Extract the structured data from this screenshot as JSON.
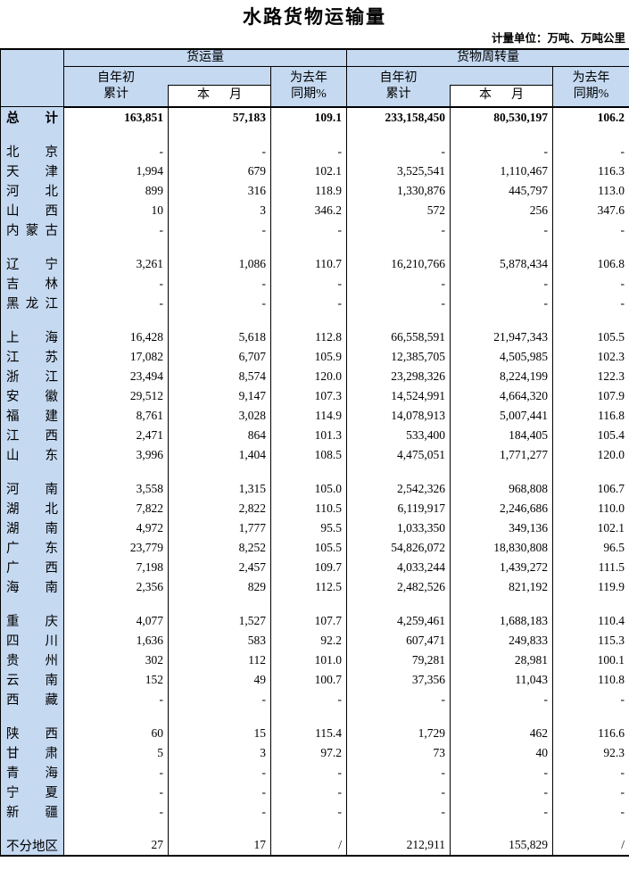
{
  "title": "水路货物运输量",
  "unit_note": "计量单位：万吨、万吨公里",
  "colors": {
    "header_bg": "#c5d9f1",
    "border": "#000000",
    "page_bg": "#ffffff"
  },
  "table": {
    "group_headers": [
      "货运量",
      "货物周转量"
    ],
    "sub_headers": {
      "cumulative_line1": "自年初",
      "cumulative_line2": "累计",
      "month": "本月",
      "yoy_line1": "为去年",
      "yoy_line2": "同期%"
    },
    "groups": [
      {
        "rows": [
          {
            "label": "总计",
            "bold": true,
            "values": [
              "163,851",
              "57,183",
              "109.1",
              "233,158,450",
              "80,530,197",
              "106.2"
            ]
          }
        ]
      },
      {
        "rows": [
          {
            "label": "北京",
            "values": [
              "-",
              "-",
              "-",
              "-",
              "-",
              "-"
            ]
          },
          {
            "label": "天津",
            "values": [
              "1,994",
              "679",
              "102.1",
              "3,525,541",
              "1,110,467",
              "116.3"
            ]
          },
          {
            "label": "河北",
            "values": [
              "899",
              "316",
              "118.9",
              "1,330,876",
              "445,797",
              "113.0"
            ]
          },
          {
            "label": "山西",
            "values": [
              "10",
              "3",
              "346.2",
              "572",
              "256",
              "347.6"
            ]
          },
          {
            "label": "内蒙古",
            "values": [
              "-",
              "-",
              "-",
              "-",
              "-",
              "-"
            ]
          }
        ]
      },
      {
        "rows": [
          {
            "label": "辽宁",
            "values": [
              "3,261",
              "1,086",
              "110.7",
              "16,210,766",
              "5,878,434",
              "106.8"
            ]
          },
          {
            "label": "吉林",
            "values": [
              "-",
              "-",
              "-",
              "-",
              "-",
              "-"
            ]
          },
          {
            "label": "黑龙江",
            "values": [
              "-",
              "-",
              "-",
              "-",
              "-",
              "-"
            ]
          }
        ]
      },
      {
        "rows": [
          {
            "label": "上海",
            "values": [
              "16,428",
              "5,618",
              "112.8",
              "66,558,591",
              "21,947,343",
              "105.5"
            ]
          },
          {
            "label": "江苏",
            "values": [
              "17,082",
              "6,707",
              "105.9",
              "12,385,705",
              "4,505,985",
              "102.3"
            ]
          },
          {
            "label": "浙江",
            "values": [
              "23,494",
              "8,574",
              "120.0",
              "23,298,326",
              "8,224,199",
              "122.3"
            ]
          },
          {
            "label": "安徽",
            "values": [
              "29,512",
              "9,147",
              "107.3",
              "14,524,991",
              "4,664,320",
              "107.9"
            ]
          },
          {
            "label": "福建",
            "values": [
              "8,761",
              "3,028",
              "114.9",
              "14,078,913",
              "5,007,441",
              "116.8"
            ]
          },
          {
            "label": "江西",
            "values": [
              "2,471",
              "864",
              "101.3",
              "533,400",
              "184,405",
              "105.4"
            ]
          },
          {
            "label": "山东",
            "values": [
              "3,996",
              "1,404",
              "108.5",
              "4,475,051",
              "1,771,277",
              "120.0"
            ]
          }
        ]
      },
      {
        "rows": [
          {
            "label": "河南",
            "values": [
              "3,558",
              "1,315",
              "105.0",
              "2,542,326",
              "968,808",
              "106.7"
            ]
          },
          {
            "label": "湖北",
            "values": [
              "7,822",
              "2,822",
              "110.5",
              "6,119,917",
              "2,246,686",
              "110.0"
            ]
          },
          {
            "label": "湖南",
            "values": [
              "4,972",
              "1,777",
              "95.5",
              "1,033,350",
              "349,136",
              "102.1"
            ]
          },
          {
            "label": "广东",
            "values": [
              "23,779",
              "8,252",
              "105.5",
              "54,826,072",
              "18,830,808",
              "96.5"
            ]
          },
          {
            "label": "广西",
            "values": [
              "7,198",
              "2,457",
              "109.7",
              "4,033,244",
              "1,439,272",
              "111.5"
            ]
          },
          {
            "label": "海南",
            "values": [
              "2,356",
              "829",
              "112.5",
              "2,482,526",
              "821,192",
              "119.9"
            ]
          }
        ]
      },
      {
        "rows": [
          {
            "label": "重庆",
            "values": [
              "4,077",
              "1,527",
              "107.7",
              "4,259,461",
              "1,688,183",
              "110.4"
            ]
          },
          {
            "label": "四川",
            "values": [
              "1,636",
              "583",
              "92.2",
              "607,471",
              "249,833",
              "115.3"
            ]
          },
          {
            "label": "贵州",
            "values": [
              "302",
              "112",
              "101.0",
              "79,281",
              "28,981",
              "100.1"
            ]
          },
          {
            "label": "云南",
            "values": [
              "152",
              "49",
              "100.7",
              "37,356",
              "11,043",
              "110.8"
            ]
          },
          {
            "label": "西藏",
            "values": [
              "-",
              "-",
              "-",
              "-",
              "-",
              "-"
            ]
          }
        ]
      },
      {
        "rows": [
          {
            "label": "陕西",
            "values": [
              "60",
              "15",
              "115.4",
              "1,729",
              "462",
              "116.6"
            ]
          },
          {
            "label": "甘肃",
            "values": [
              "5",
              "3",
              "97.2",
              "73",
              "40",
              "92.3"
            ]
          },
          {
            "label": "青海",
            "values": [
              "-",
              "-",
              "-",
              "-",
              "-",
              "-"
            ]
          },
          {
            "label": "宁夏",
            "values": [
              "-",
              "-",
              "-",
              "-",
              "-",
              "-"
            ]
          },
          {
            "label": "新疆",
            "values": [
              "-",
              "-",
              "-",
              "-",
              "-",
              "-"
            ]
          }
        ]
      },
      {
        "rows": [
          {
            "label": "不分地区",
            "values": [
              "27",
              "17",
              "/",
              "212,911",
              "155,829",
              "/"
            ]
          }
        ]
      }
    ]
  }
}
